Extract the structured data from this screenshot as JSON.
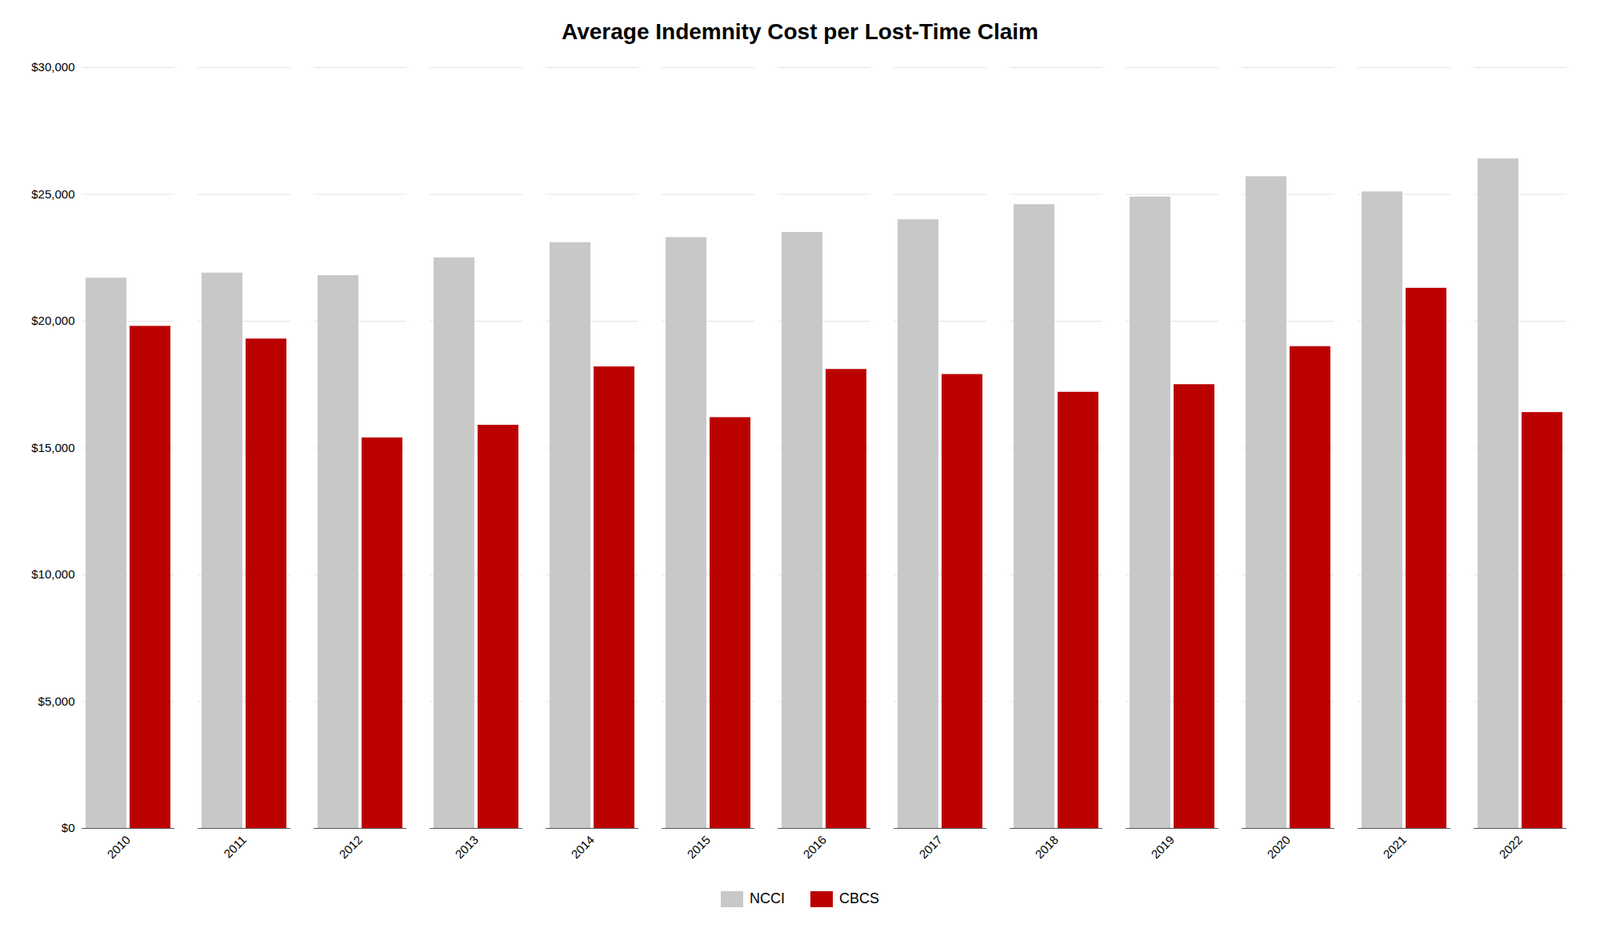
{
  "chart_data": {
    "type": "bar",
    "title": "Average Indemnity Cost per Lost-Time Claim",
    "categories": [
      "2010",
      "2011",
      "2012",
      "2013",
      "2014",
      "2015",
      "2016",
      "2017",
      "2018",
      "2019",
      "2020",
      "2021",
      "2022"
    ],
    "series": [
      {
        "name": "NCCI",
        "color": "#c8c8c8",
        "values": [
          21700,
          21900,
          21800,
          22500,
          23100,
          23300,
          23500,
          24000,
          24600,
          24900,
          25700,
          25100,
          26400
        ]
      },
      {
        "name": "CBCS",
        "color": "#bb0000",
        "values": [
          19800,
          19300,
          15400,
          15900,
          18200,
          16200,
          18100,
          17900,
          17200,
          17500,
          19000,
          21300,
          16400
        ]
      }
    ],
    "ylim": [
      0,
      30000
    ],
    "yticks": [
      {
        "value": 0,
        "label": "$0"
      },
      {
        "value": 5000,
        "label": "$5,000"
      },
      {
        "value": 10000,
        "label": "$10,000"
      },
      {
        "value": 15000,
        "label": "$15,000"
      },
      {
        "value": 20000,
        "label": "$20,000"
      },
      {
        "value": 25000,
        "label": "$25,000"
      },
      {
        "value": 30000,
        "label": "$30,000"
      }
    ],
    "grid": true,
    "legend": "bottom"
  }
}
